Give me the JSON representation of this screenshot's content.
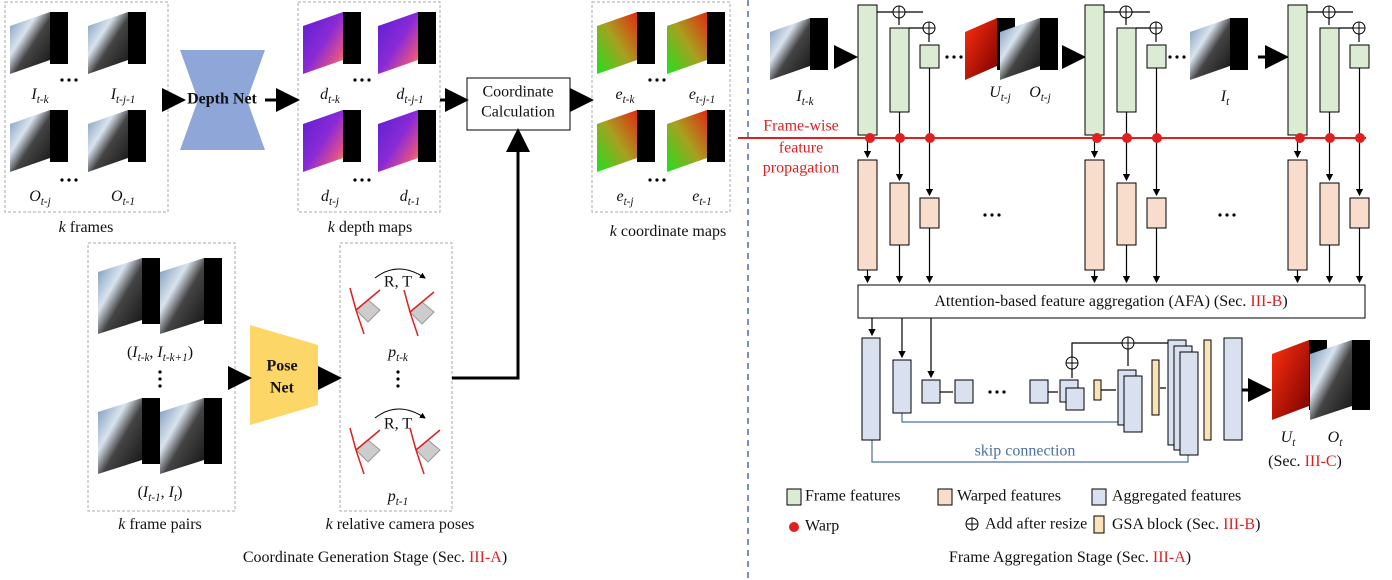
{
  "coordinate_stage": {
    "frames": {
      "labels": [
        [
          {
            "t": "I",
            "sub": "t-k",
            "italic": true
          }
        ],
        [
          {
            "t": "I",
            "sub": "t-j-1",
            "italic": true
          }
        ],
        [
          {
            "t": "O",
            "sub": "t-j",
            "italic": true
          }
        ],
        [
          {
            "t": "O",
            "sub": "t-1",
            "italic": true
          }
        ]
      ],
      "caption": [
        {
          "t": "k",
          "italic": true
        },
        {
          "t": " frames"
        }
      ]
    },
    "depth_net": "Depth Net",
    "depth_maps": {
      "labels": [
        [
          {
            "t": "d",
            "sub": "t-k",
            "italic": true
          }
        ],
        [
          {
            "t": "d",
            "sub": "t-j-1",
            "italic": true
          }
        ],
        [
          {
            "t": "d",
            "sub": "t-j",
            "italic": true
          }
        ],
        [
          {
            "t": "d",
            "sub": "t-1",
            "italic": true
          }
        ]
      ],
      "caption": [
        {
          "t": "k",
          "italic": true
        },
        {
          "t": " depth maps"
        }
      ]
    },
    "coordinate_calculation": [
      "Coordinate",
      "Calculation"
    ],
    "coordinate_maps": {
      "labels": [
        [
          {
            "t": "e",
            "sub": "t-k",
            "italic": true
          }
        ],
        [
          {
            "t": "e",
            "sub": "t-j-1",
            "italic": true
          }
        ],
        [
          {
            "t": "e",
            "sub": "t-j",
            "italic": true
          }
        ],
        [
          {
            "t": "e",
            "sub": "t-1",
            "italic": true
          }
        ]
      ],
      "caption": [
        {
          "t": "k",
          "italic": true
        },
        {
          "t": " coordinate maps"
        }
      ]
    },
    "frame_pairs": {
      "labels": [
        [
          {
            "t": "("
          },
          {
            "t": "I",
            "sub": "t-k",
            "italic": true
          },
          {
            "t": ", "
          },
          {
            "t": "I",
            "sub": "t-k+1",
            "italic": true
          },
          {
            "t": ")"
          }
        ],
        [
          {
            "t": "("
          },
          {
            "t": "I",
            "sub": "t-1",
            "italic": true
          },
          {
            "t": ", "
          },
          {
            "t": "I",
            "sub": "t",
            "italic": true
          },
          {
            "t": ")"
          }
        ]
      ],
      "caption": [
        {
          "t": "k",
          "italic": true
        },
        {
          "t": " frame pairs"
        }
      ]
    },
    "pose_net": [
      "Pose",
      "Net"
    ],
    "poses": {
      "rt": [
        "R, T",
        "R, T"
      ],
      "labels": [
        [
          {
            "t": "p",
            "sub": "t-k",
            "italic": true
          }
        ],
        [
          {
            "t": "p",
            "sub": "t-1",
            "italic": true
          }
        ]
      ],
      "caption": [
        {
          "t": "k",
          "italic": true
        },
        {
          "t": " relative camera poses"
        }
      ]
    },
    "title": [
      {
        "t": "Coordinate Generation Stage (Sec. "
      },
      {
        "t": "III-A",
        "color": "#e02020"
      },
      {
        "t": ")"
      }
    ]
  },
  "aggregation_stage": {
    "inputs": [
      [
        {
          "t": "I",
          "sub": "t-k",
          "italic": true
        }
      ],
      [
        {
          "t": "U",
          "sub": "t-j",
          "italic": true
        }
      ],
      [
        {
          "t": "O",
          "sub": "t-j",
          "italic": true
        }
      ],
      [
        {
          "t": "I",
          "sub": "t",
          "italic": true
        }
      ]
    ],
    "propagation": [
      "Frame-wise",
      "feature",
      "propagation"
    ],
    "afa": [
      {
        "t": "Attention-based feature aggregation (AFA) (Sec. "
      },
      {
        "t": "III-B",
        "color": "#e02020"
      },
      {
        "t": ")"
      }
    ],
    "skip": "skip connection",
    "outputs": [
      [
        {
          "t": "U",
          "sub": "t",
          "italic": true
        }
      ],
      [
        {
          "t": "O",
          "sub": "t",
          "italic": true
        }
      ],
      [
        {
          "t": "(Sec. "
        },
        {
          "t": "III-C",
          "color": "#e02020"
        },
        {
          "t": ")"
        }
      ]
    ],
    "legend": {
      "frame": "Frame features",
      "warped": "Warped features",
      "aggregated": "Aggregated features",
      "warp": "Warp",
      "add": "Add after resize",
      "gsa": [
        {
          "t": "GSA block (Sec. "
        },
        {
          "t": "III-B",
          "color": "#e02020"
        },
        {
          "t": ")"
        }
      ]
    },
    "title": [
      {
        "t": "Frame Aggregation Stage (Sec. "
      },
      {
        "t": "III-A",
        "color": "#e02020"
      },
      {
        "t": ")"
      }
    ]
  }
}
